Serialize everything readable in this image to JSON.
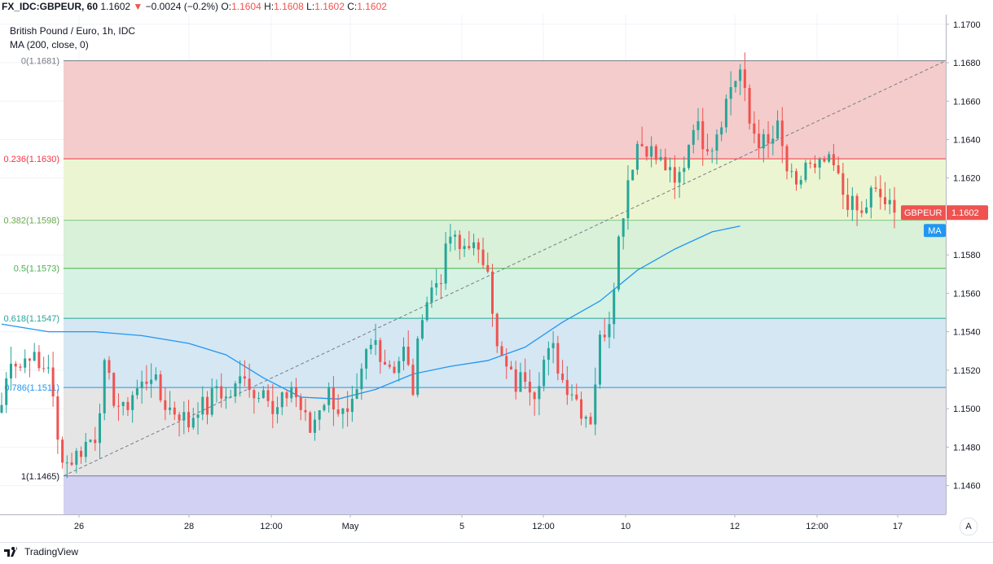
{
  "header": {
    "symbol": "FX_IDC:GBPEUR, 60",
    "last": "1.1602",
    "change_arrow": "▼",
    "change": "−0.0024 (−0.2%)",
    "o_label": "O:",
    "o": "1.1604",
    "h_label": "H:",
    "h": "1.1608",
    "l_label": "L:",
    "l": "1.1602",
    "c_label": "C:",
    "c": "1.1602"
  },
  "legend": {
    "title": "British Pound / Euro, 1h, IDC",
    "indicator": "MA (200, close, 0)"
  },
  "footer": {
    "brand": "TradingView",
    "scale_button": "A"
  },
  "colors": {
    "up": "#26a69a",
    "down": "#ef5350",
    "ma": "#2196f3",
    "price_tag": "#ef5350",
    "ma_tag": "#2196f3"
  },
  "chart_data": {
    "type": "candlestick",
    "title": "British Pound / Euro, 1h, IDC",
    "ylim": [
      1.1445,
      1.1705
    ],
    "y_ticks": [
      "1.1700",
      "1.1680",
      "1.1660",
      "1.1640",
      "1.1620",
      "1.1600",
      "1.1580",
      "1.1560",
      "1.1540",
      "1.1520",
      "1.1500",
      "1.1480",
      "1.1460"
    ],
    "x_ticks": [
      "26",
      "28",
      "12:00",
      "May",
      "5",
      "12:00",
      "10",
      "12",
      "12:00",
      "17"
    ],
    "fib_levels": [
      {
        "ratio": 0,
        "price": 1.1681,
        "label": "0(1.1681)",
        "line": "#787b86",
        "fill": "#f4cccc",
        "label_color": "#787b86"
      },
      {
        "ratio": 0.236,
        "price": 1.163,
        "label": "0.236(1.1630)",
        "line": "#f23645",
        "fill": "#ecf5d1",
        "label_color": "#f23645"
      },
      {
        "ratio": 0.382,
        "price": 1.1598,
        "label": "0.382(1.1598)",
        "line": "#81c784",
        "fill": "#d8f1d8",
        "label_color": "#6aa84f"
      },
      {
        "ratio": 0.5,
        "price": 1.1573,
        "label": "0.5(1.1573)",
        "line": "#4caf50",
        "fill": "#d6f2e4",
        "label_color": "#4caf50"
      },
      {
        "ratio": 0.618,
        "price": 1.1547,
        "label": "0.618(1.1547)",
        "line": "#26a69a",
        "fill": "#d4e7f3",
        "label_color": "#26a69a"
      },
      {
        "ratio": 0.786,
        "price": 1.1511,
        "label": "0.786(1.1511)",
        "line": "#2196f3",
        "fill": "#e5e5e5",
        "label_color": "#2196f3"
      },
      {
        "ratio": 1,
        "price": 1.1465,
        "label": "1(1.1465)",
        "line": "#787b86",
        "fill": "#d2d1f3",
        "label_color": "#131722"
      }
    ],
    "trendline": {
      "from": [
        0,
        1.1465
      ],
      "to": [
        1,
        1.1681
      ]
    },
    "path": [
      [
        0,
        1.1502
      ],
      [
        2,
        1.1528
      ],
      [
        4,
        1.1522
      ],
      [
        6,
        1.153
      ],
      [
        8,
        1.152
      ],
      [
        10,
        1.1524
      ],
      [
        12,
        1.1482
      ],
      [
        14,
        1.1472
      ],
      [
        16,
        1.1476
      ],
      [
        18,
        1.1482
      ],
      [
        20,
        1.1486
      ],
      [
        22,
        1.152
      ],
      [
        24,
        1.1506
      ],
      [
        26,
        1.1498
      ],
      [
        28,
        1.1508
      ],
      [
        30,
        1.1512
      ],
      [
        32,
        1.1519
      ],
      [
        34,
        1.1505
      ],
      [
        36,
        1.15
      ],
      [
        38,
        1.1498
      ],
      [
        40,
        1.1492
      ],
      [
        42,
        1.1502
      ],
      [
        44,
        1.15
      ],
      [
        46,
        1.1512
      ],
      [
        48,
        1.1505
      ],
      [
        50,
        1.151
      ],
      [
        52,
        1.152
      ],
      [
        54,
        1.1506
      ],
      [
        56,
        1.1515
      ],
      [
        58,
        1.1495
      ],
      [
        60,
        1.1503
      ],
      [
        62,
        1.1512
      ],
      [
        64,
        1.15
      ],
      [
        66,
        1.1488
      ],
      [
        68,
        1.1502
      ],
      [
        70,
        1.1508
      ],
      [
        72,
        1.15
      ],
      [
        74,
        1.1494
      ],
      [
        76,
        1.1505
      ],
      [
        78,
        1.1528
      ],
      [
        80,
        1.1535
      ],
      [
        82,
        1.1525
      ],
      [
        84,
        1.1522
      ],
      [
        86,
        1.153
      ],
      [
        88,
        1.151
      ],
      [
        90,
        1.1552
      ],
      [
        92,
        1.1562
      ],
      [
        94,
        1.157
      ],
      [
        96,
        1.159
      ],
      [
        98,
        1.1582
      ],
      [
        100,
        1.1588
      ],
      [
        102,
        1.1578
      ],
      [
        104,
        1.1577
      ],
      [
        106,
        1.153
      ],
      [
        108,
        1.152
      ],
      [
        110,
        1.1512
      ],
      [
        112,
        1.1518
      ],
      [
        114,
        1.151
      ],
      [
        116,
        1.1525
      ],
      [
        118,
        1.153
      ],
      [
        120,
        1.1515
      ],
      [
        122,
        1.151
      ],
      [
        124,
        1.15
      ],
      [
        126,
        1.1495
      ],
      [
        128,
        1.1535
      ],
      [
        130,
        1.1548
      ],
      [
        132,
        1.1588
      ],
      [
        134,
        1.162
      ],
      [
        136,
        1.1638
      ],
      [
        138,
        1.1637
      ],
      [
        140,
        1.163
      ],
      [
        142,
        1.1626
      ],
      [
        144,
        1.1615
      ],
      [
        146,
        1.1628
      ],
      [
        148,
        1.165
      ],
      [
        150,
        1.164
      ],
      [
        152,
        1.1638
      ],
      [
        154,
        1.1652
      ],
      [
        156,
        1.1668
      ],
      [
        158,
        1.1676
      ],
      [
        160,
        1.1648
      ],
      [
        162,
        1.164
      ],
      [
        164,
        1.1636
      ],
      [
        166,
        1.1645
      ],
      [
        168,
        1.1624
      ],
      [
        170,
        1.1612
      ],
      [
        172,
        1.1628
      ],
      [
        174,
        1.1622
      ],
      [
        176,
        1.1628
      ],
      [
        178,
        1.1625
      ],
      [
        180,
        1.1612
      ],
      [
        182,
        1.1605
      ],
      [
        184,
        1.16
      ],
      [
        186,
        1.1612
      ],
      [
        188,
        1.161
      ],
      [
        190,
        1.1604
      ],
      [
        191,
        1.1602
      ]
    ],
    "ma": [
      [
        0,
        1.1544
      ],
      [
        10,
        1.154
      ],
      [
        20,
        1.154
      ],
      [
        30,
        1.1538
      ],
      [
        40,
        1.1534
      ],
      [
        48,
        1.1528
      ],
      [
        56,
        1.1516
      ],
      [
        64,
        1.1506
      ],
      [
        72,
        1.1505
      ],
      [
        80,
        1.151
      ],
      [
        88,
        1.1518
      ],
      [
        96,
        1.1522
      ],
      [
        104,
        1.1525
      ],
      [
        112,
        1.1532
      ],
      [
        120,
        1.1545
      ],
      [
        128,
        1.1556
      ],
      [
        136,
        1.1572
      ],
      [
        144,
        1.1583
      ],
      [
        152,
        1.1592
      ],
      [
        158,
        1.1595
      ]
    ],
    "price_tag": {
      "name": "GBPEUR",
      "value": "1.1602"
    },
    "ma_tag": {
      "name": "MA"
    }
  }
}
